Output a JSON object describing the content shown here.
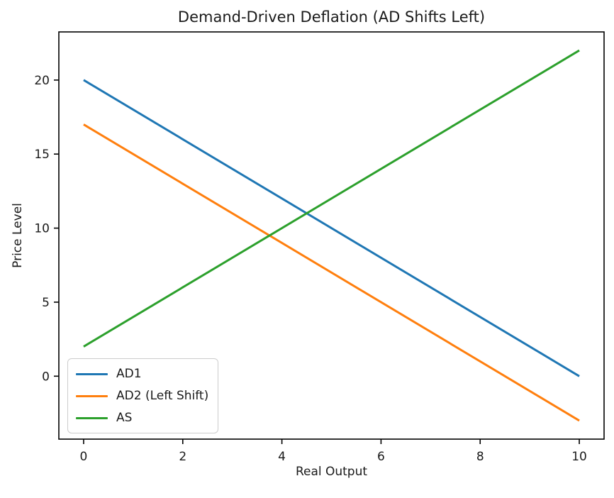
{
  "chart_data": {
    "type": "line",
    "title": "Demand-Driven Deflation (AD Shifts Left)",
    "xlabel": "Real Output",
    "ylabel": "Price Level",
    "xlim": [
      -0.5,
      10.5
    ],
    "ylim": [
      -4.25,
      23.25
    ],
    "xticks": [
      0,
      2,
      4,
      6,
      8,
      10
    ],
    "yticks": [
      0,
      5,
      10,
      15,
      20
    ],
    "grid": false,
    "legend": {
      "position": "lower left",
      "entries": [
        "AD1",
        "AD2 (Left Shift)",
        "AS"
      ]
    },
    "series": [
      {
        "name": "AD1",
        "color": "#1f77b4",
        "x": [
          0,
          10
        ],
        "y": [
          20,
          0
        ]
      },
      {
        "name": "AD2 (Left Shift)",
        "color": "#ff7f0e",
        "x": [
          0,
          10
        ],
        "y": [
          17,
          -3
        ]
      },
      {
        "name": "AS",
        "color": "#2ca02c",
        "x": [
          0,
          10
        ],
        "y": [
          2,
          22
        ]
      }
    ],
    "axis_color": "#000000",
    "background_color": "#ffffff"
  }
}
